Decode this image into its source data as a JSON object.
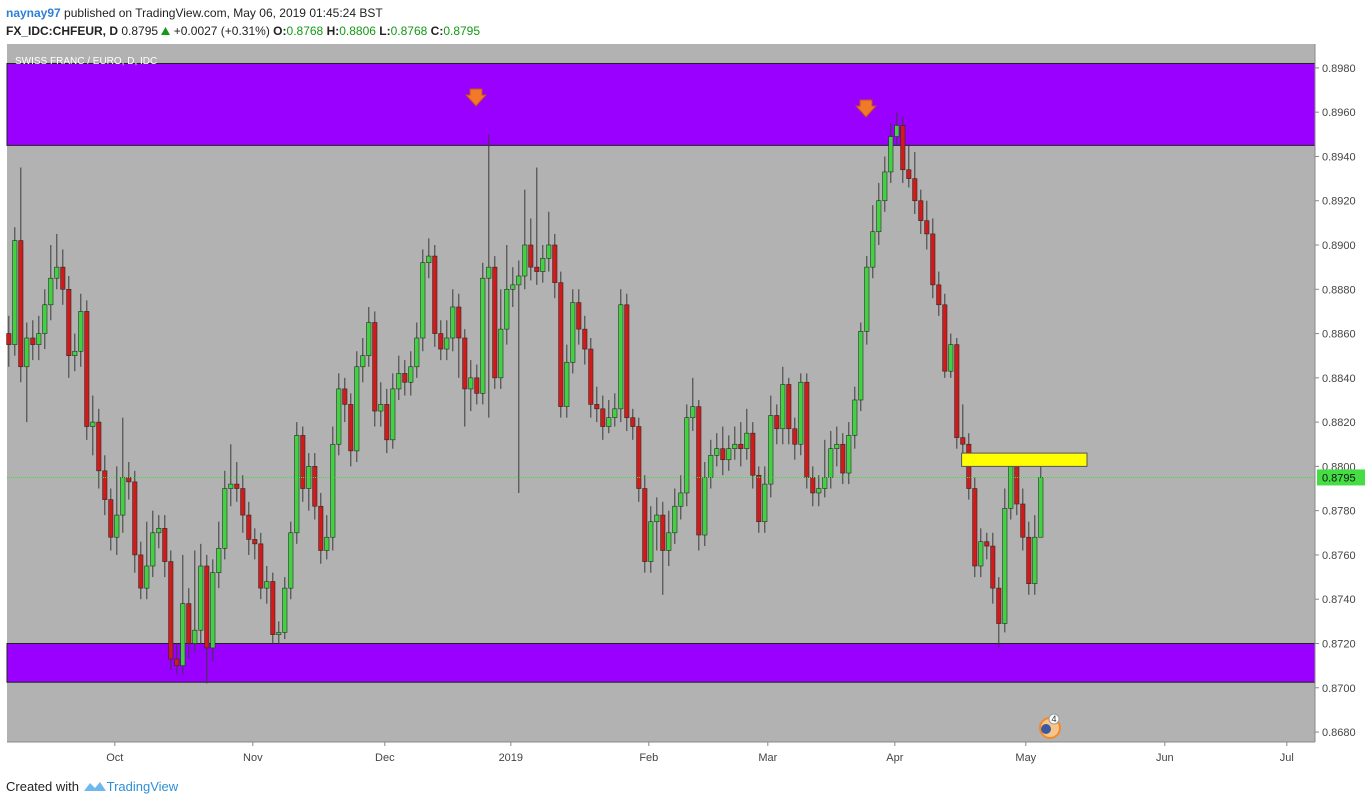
{
  "header": {
    "author": "naynay97",
    "published": "published on TradingView.com, May 06, 2019 01:45:24 BST",
    "symbol": "FX_IDC:CHFEUR, D",
    "price": "0.8795",
    "change": "+0.0027 (+0.31%)",
    "quote": [
      {
        "label": "O:",
        "value": "0.8768"
      },
      {
        "label": "H:",
        "value": "0.8806"
      },
      {
        "label": "L:",
        "value": "0.8768"
      },
      {
        "label": "C:",
        "value": "0.8795"
      }
    ]
  },
  "footer": {
    "prefix": "Created with",
    "brand": "TradingView"
  },
  "chart_data": {
    "type": "candlestick",
    "title": "SWISS FRANC / EURO, D, IDC",
    "up_color": "#3fd43f",
    "down_color": "#d41919",
    "background": "#b2b2b2",
    "grid": false,
    "xlim": [
      -0.3,
      217.7
    ],
    "ylim": [
      0.86755,
      0.89908
    ],
    "xticks": [
      {
        "value": 17.67,
        "label": "Oct"
      },
      {
        "value": 40.67,
        "label": "Nov"
      },
      {
        "value": 62.67,
        "label": "Dec"
      },
      {
        "value": 83.67,
        "label": "2019"
      },
      {
        "value": 106.67,
        "label": "Feb"
      },
      {
        "value": 126.5,
        "label": "Mar"
      },
      {
        "value": 147.67,
        "label": "Apr"
      },
      {
        "value": 169.5,
        "label": "May"
      },
      {
        "value": 192.67,
        "label": "Jun"
      },
      {
        "value": 213,
        "label": "Jul"
      }
    ],
    "yticks": [
      {
        "value": 0.868,
        "label": "0.8680"
      },
      {
        "value": 0.87,
        "label": "0.8700"
      },
      {
        "value": 0.872,
        "label": "0.8720"
      },
      {
        "value": 0.874,
        "label": "0.8740"
      },
      {
        "value": 0.876,
        "label": "0.8760"
      },
      {
        "value": 0.878,
        "label": "0.8780"
      },
      {
        "value": 0.88,
        "label": "0.8800"
      },
      {
        "value": 0.882,
        "label": "0.8820"
      },
      {
        "value": 0.884,
        "label": "0.8840"
      },
      {
        "value": 0.886,
        "label": "0.8860"
      },
      {
        "value": 0.888,
        "label": "0.8880"
      },
      {
        "value": 0.89,
        "label": "0.8900"
      },
      {
        "value": 0.892,
        "label": "0.8920"
      },
      {
        "value": 0.894,
        "label": "0.8940"
      },
      {
        "value": 0.896,
        "label": "0.8960"
      },
      {
        "value": 0.898,
        "label": "0.8980"
      }
    ],
    "zones": [
      {
        "from": 0.8945,
        "to": 0.8982,
        "color": "#9900ff"
      },
      {
        "from": 0.87025,
        "to": 0.872,
        "color": "#9900ff"
      }
    ],
    "highlight": {
      "x0": 158.8,
      "x1": 179.7,
      "from": 0.88,
      "to": 0.8806,
      "color": "#ffff00"
    },
    "last_price": 0.8795,
    "last_color": "#44dd44",
    "events_count": 4,
    "open": [
      0.886,
      0.8855,
      0.8902,
      0.8845,
      0.8858,
      0.8855,
      0.886,
      0.8873,
      0.8885,
      0.889,
      0.888,
      0.885,
      0.8852,
      0.887,
      0.8818,
      0.882,
      0.8798,
      0.8785,
      0.8768,
      0.8778,
      0.8795,
      0.8793,
      0.876,
      0.8745,
      0.8755,
      0.877,
      0.8772,
      0.8757,
      0.8713,
      0.871,
      0.8738,
      0.872,
      0.8726,
      0.8755,
      0.8718,
      0.8752,
      0.8763,
      0.879,
      0.8792,
      0.879,
      0.8778,
      0.8767,
      0.8765,
      0.8745,
      0.8748,
      0.8724,
      0.8725,
      0.8745,
      0.877,
      0.8814,
      0.879,
      0.88,
      0.8782,
      0.8762,
      0.8768,
      0.881,
      0.8835,
      0.8828,
      0.8807,
      0.8845,
      0.885,
      0.8865,
      0.8825,
      0.8828,
      0.8812,
      0.8835,
      0.8842,
      0.8838,
      0.8845,
      0.8858,
      0.8892,
      0.8895,
      0.886,
      0.8853,
      0.8858,
      0.8872,
      0.8858,
      0.8835,
      0.884,
      0.8833,
      0.8885,
      0.889,
      0.884,
      0.8862,
      0.888,
      0.8882,
      0.8886,
      0.89,
      0.889,
      0.8888,
      0.8894,
      0.89,
      0.8883,
      0.8827,
      0.8847,
      0.8874,
      0.8862,
      0.8853,
      0.8828,
      0.8826,
      0.8818,
      0.8822,
      0.8826,
      0.8873,
      0.8822,
      0.8818,
      0.879,
      0.8757,
      0.8775,
      0.8778,
      0.8762,
      0.877,
      0.8782,
      0.8788,
      0.8822,
      0.8827,
      0.8769,
      0.8795,
      0.8805,
      0.8808,
      0.8803,
      0.8808,
      0.881,
      0.8808,
      0.8815,
      0.8796,
      0.8775,
      0.8792,
      0.8823,
      0.8817,
      0.8837,
      0.8817,
      0.881,
      0.8838,
      0.8795,
      0.8788,
      0.879,
      0.8795,
      0.8808,
      0.881,
      0.8797,
      0.8814,
      0.883,
      0.8861,
      0.889,
      0.8906,
      0.892,
      0.8933,
      0.8949,
      0.8954,
      0.8934,
      0.893,
      0.892,
      0.8911,
      0.8905,
      0.8882,
      0.8873,
      0.8843,
      0.8855,
      0.8813,
      0.881,
      0.879,
      0.8755,
      0.8766,
      0.8764,
      0.8745,
      0.8729,
      0.8781,
      0.8801,
      0.8783,
      0.8768,
      0.8747,
      0.8768
    ],
    "high": [
      0.8868,
      0.8908,
      0.8935,
      0.8865,
      0.8866,
      0.8868,
      0.888,
      0.89,
      0.8905,
      0.8898,
      0.8886,
      0.886,
      0.8878,
      0.8875,
      0.8832,
      0.8826,
      0.8805,
      0.879,
      0.88,
      0.8822,
      0.8802,
      0.8798,
      0.8766,
      0.8775,
      0.878,
      0.8778,
      0.8778,
      0.8762,
      0.872,
      0.876,
      0.8745,
      0.8762,
      0.8765,
      0.876,
      0.8758,
      0.8775,
      0.8798,
      0.881,
      0.8802,
      0.8796,
      0.8784,
      0.8772,
      0.877,
      0.8755,
      0.8752,
      0.873,
      0.875,
      0.8775,
      0.882,
      0.8818,
      0.8806,
      0.8806,
      0.8788,
      0.8778,
      0.8818,
      0.8842,
      0.884,
      0.8833,
      0.8852,
      0.8858,
      0.8872,
      0.887,
      0.8838,
      0.8835,
      0.8842,
      0.885,
      0.8848,
      0.8852,
      0.8865,
      0.8898,
      0.8903,
      0.89,
      0.8866,
      0.8866,
      0.888,
      0.8878,
      0.8862,
      0.8848,
      0.8846,
      0.8892,
      0.895,
      0.8895,
      0.888,
      0.89,
      0.889,
      0.8893,
      0.8925,
      0.8912,
      0.8935,
      0.89,
      0.8915,
      0.8905,
      0.8888,
      0.8855,
      0.888,
      0.888,
      0.8868,
      0.8858,
      0.8836,
      0.8832,
      0.883,
      0.8833,
      0.888,
      0.8878,
      0.8826,
      0.8822,
      0.8796,
      0.8782,
      0.8786,
      0.8784,
      0.878,
      0.879,
      0.8796,
      0.8828,
      0.884,
      0.883,
      0.8802,
      0.8812,
      0.8815,
      0.8818,
      0.8814,
      0.8818,
      0.882,
      0.8826,
      0.882,
      0.88,
      0.88,
      0.8832,
      0.8828,
      0.8845,
      0.884,
      0.8822,
      0.8842,
      0.8842,
      0.88,
      0.8796,
      0.8812,
      0.8816,
      0.8818,
      0.8815,
      0.882,
      0.8836,
      0.8865,
      0.8895,
      0.8918,
      0.8928,
      0.894,
      0.8955,
      0.896,
      0.8958,
      0.8945,
      0.8942,
      0.8925,
      0.892,
      0.8912,
      0.8888,
      0.8878,
      0.886,
      0.8858,
      0.8828,
      0.8815,
      0.8795,
      0.8772,
      0.877,
      0.877,
      0.875,
      0.879,
      0.8806,
      0.8806,
      0.879,
      0.8775,
      0.8778,
      0.8806
    ],
    "low": [
      0.8845,
      0.885,
      0.8838,
      0.882,
      0.8848,
      0.8848,
      0.8853,
      0.8866,
      0.888,
      0.8873,
      0.884,
      0.8843,
      0.8845,
      0.8812,
      0.8805,
      0.879,
      0.8778,
      0.8762,
      0.876,
      0.877,
      0.8785,
      0.8752,
      0.874,
      0.874,
      0.875,
      0.8763,
      0.875,
      0.8708,
      0.8706,
      0.8706,
      0.8713,
      0.8716,
      0.872,
      0.8702,
      0.8712,
      0.8745,
      0.8758,
      0.8782,
      0.8784,
      0.877,
      0.876,
      0.8758,
      0.874,
      0.8738,
      0.872,
      0.872,
      0.8722,
      0.874,
      0.8765,
      0.8784,
      0.878,
      0.8776,
      0.8756,
      0.8758,
      0.8762,
      0.8805,
      0.882,
      0.88,
      0.8802,
      0.8838,
      0.8845,
      0.8818,
      0.8818,
      0.8806,
      0.8808,
      0.883,
      0.8832,
      0.8832,
      0.884,
      0.8852,
      0.8885,
      0.8854,
      0.8848,
      0.8848,
      0.8852,
      0.884,
      0.8818,
      0.8825,
      0.8828,
      0.8828,
      0.8822,
      0.8835,
      0.8835,
      0.8855,
      0.8872,
      0.8788,
      0.888,
      0.8884,
      0.8882,
      0.8883,
      0.8888,
      0.8876,
      0.8822,
      0.8822,
      0.8842,
      0.8855,
      0.8846,
      0.8822,
      0.882,
      0.8812,
      0.8815,
      0.8818,
      0.882,
      0.8816,
      0.8812,
      0.8784,
      0.8752,
      0.8752,
      0.8762,
      0.8742,
      0.8755,
      0.8765,
      0.8776,
      0.8782,
      0.8816,
      0.8762,
      0.8764,
      0.879,
      0.88,
      0.8796,
      0.8798,
      0.8803,
      0.88,
      0.8803,
      0.879,
      0.877,
      0.877,
      0.8786,
      0.881,
      0.881,
      0.881,
      0.8803,
      0.8805,
      0.879,
      0.8782,
      0.8782,
      0.8786,
      0.879,
      0.88,
      0.8792,
      0.8792,
      0.8808,
      0.8825,
      0.8855,
      0.8885,
      0.89,
      0.8915,
      0.8928,
      0.8945,
      0.8928,
      0.8926,
      0.8914,
      0.8905,
      0.8898,
      0.8876,
      0.8868,
      0.884,
      0.884,
      0.8808,
      0.8805,
      0.8785,
      0.875,
      0.875,
      0.8758,
      0.8738,
      0.8718,
      0.8725,
      0.8776,
      0.8778,
      0.8762,
      0.8742,
      0.8742,
      0.8768
    ],
    "close": [
      0.8855,
      0.8902,
      0.8845,
      0.8858,
      0.8855,
      0.886,
      0.8873,
      0.8885,
      0.889,
      0.888,
      0.885,
      0.8852,
      0.887,
      0.8818,
      0.882,
      0.8798,
      0.8785,
      0.8768,
      0.8778,
      0.8795,
      0.8793,
      0.876,
      0.8745,
      0.8755,
      0.877,
      0.8772,
      0.8757,
      0.8713,
      0.871,
      0.8738,
      0.872,
      0.8726,
      0.8755,
      0.8718,
      0.8752,
      0.8763,
      0.879,
      0.8792,
      0.879,
      0.8778,
      0.8767,
      0.8765,
      0.8745,
      0.8748,
      0.8724,
      0.8725,
      0.8745,
      0.877,
      0.8814,
      0.879,
      0.88,
      0.8782,
      0.8762,
      0.8768,
      0.881,
      0.8835,
      0.8828,
      0.8807,
      0.8845,
      0.885,
      0.8865,
      0.8825,
      0.8828,
      0.8812,
      0.8835,
      0.8842,
      0.8838,
      0.8845,
      0.8858,
      0.8892,
      0.8895,
      0.886,
      0.8853,
      0.8858,
      0.8872,
      0.8858,
      0.8835,
      0.884,
      0.8833,
      0.8885,
      0.889,
      0.884,
      0.8862,
      0.888,
      0.8882,
      0.8886,
      0.89,
      0.889,
      0.8888,
      0.8894,
      0.89,
      0.8883,
      0.8827,
      0.8847,
      0.8874,
      0.8862,
      0.8853,
      0.8828,
      0.8826,
      0.8818,
      0.8822,
      0.8826,
      0.8873,
      0.8822,
      0.8818,
      0.879,
      0.8757,
      0.8775,
      0.8778,
      0.8762,
      0.877,
      0.8782,
      0.8788,
      0.8822,
      0.8827,
      0.8769,
      0.8795,
      0.8805,
      0.8808,
      0.8803,
      0.8808,
      0.881,
      0.8808,
      0.8815,
      0.8796,
      0.8775,
      0.8792,
      0.8823,
      0.8817,
      0.8837,
      0.8817,
      0.881,
      0.8838,
      0.8795,
      0.8788,
      0.879,
      0.8795,
      0.8808,
      0.881,
      0.8797,
      0.8814,
      0.883,
      0.8861,
      0.889,
      0.8906,
      0.892,
      0.8933,
      0.8949,
      0.8954,
      0.8934,
      0.893,
      0.892,
      0.8911,
      0.8905,
      0.8882,
      0.8873,
      0.8843,
      0.8855,
      0.8813,
      0.881,
      0.879,
      0.8755,
      0.8766,
      0.8764,
      0.8745,
      0.8729,
      0.8781,
      0.8801,
      0.8783,
      0.8768,
      0.8747,
      0.8768,
      0.8795
    ]
  }
}
